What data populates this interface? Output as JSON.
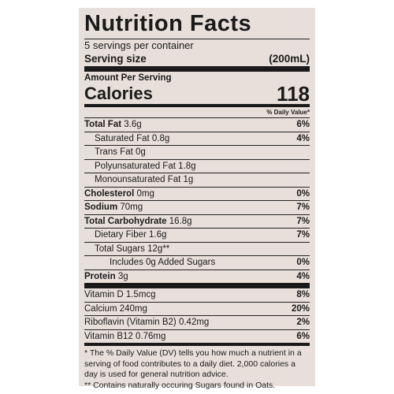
{
  "title": "Nutrition Facts",
  "servings": "5 servings per container",
  "serving_size": {
    "label": "Serving size",
    "amount": "(200mL)"
  },
  "amount_per_serving": "Amount Per Serving",
  "calories": {
    "label": "Calories",
    "value": "118"
  },
  "daily_value_header": "% Daily Value*",
  "nutrients": [
    {
      "name": "Total Fat",
      "amount": "3.6g",
      "dv": "6%"
    },
    {
      "name": "Saturated Fat",
      "amount": "0.8g",
      "dv": "4%"
    },
    {
      "name": "Trans Fat",
      "amount": "0g"
    },
    {
      "name": "Polyunsaturated Fat",
      "amount": "1.8g"
    },
    {
      "name": "Monounsaturated Fat",
      "amount": "1g"
    },
    {
      "name": "Cholesterol",
      "amount": "0mg",
      "dv": "0%"
    },
    {
      "name": "Sodium",
      "amount": "70mg",
      "dv": "7%"
    },
    {
      "name": "Total Carbohydrate",
      "amount": "16.8g",
      "dv": "7%"
    },
    {
      "name": "Dietary Fiber",
      "amount": "1.6g",
      "dv": "7%"
    },
    {
      "name": "Total Sugars",
      "amount": "12g**"
    },
    {
      "name": "Includes 0g Added Sugars",
      "dv": "0%"
    },
    {
      "name": "Protein",
      "amount": "3g",
      "dv": "4%"
    }
  ],
  "vitamins": [
    {
      "name": "Vitamin D",
      "amount": "1.5mcg",
      "dv": "8%"
    },
    {
      "name": "Calcium",
      "amount": "240mg",
      "dv": "20%"
    },
    {
      "name": "Riboflavin (Vitamin B2)",
      "amount": "0.42mg",
      "dv": "2%"
    },
    {
      "name": "Vitamin B12",
      "amount": "0.76mg",
      "dv": "6%"
    }
  ],
  "footnotes": [
    "* The % Daily Value (DV) tells you how much a nutrient in a serving of food contributes to a daily diet. 2,000 calories a day is used for general nutrition advice.",
    "** Contains naturally occuring Sugars found in Oats."
  ]
}
